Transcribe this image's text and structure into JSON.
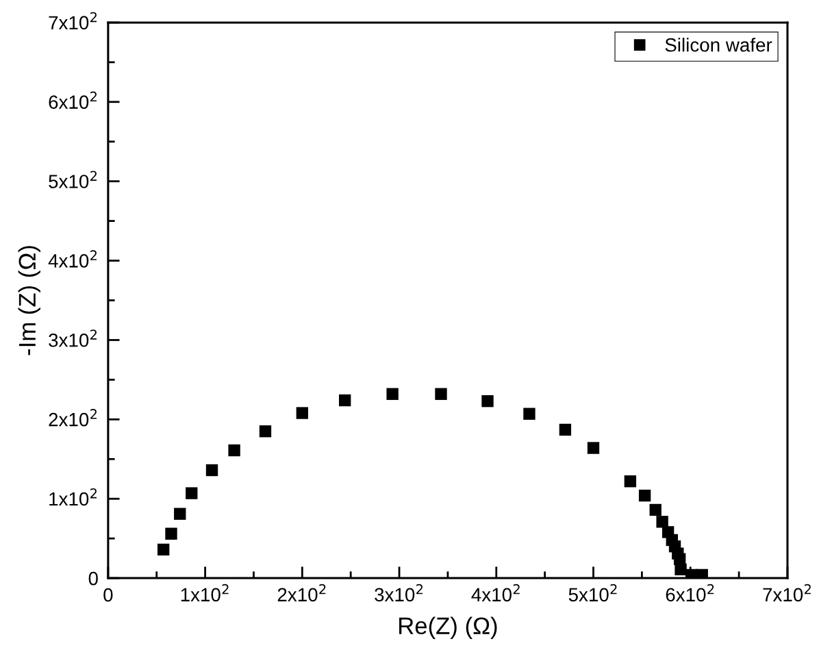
{
  "chart_data": {
    "type": "scatter",
    "xlabel": "Re(Z) (Ω)",
    "ylabel": "-Im (Z) (Ω)",
    "x": [
      57,
      65,
      74,
      86,
      107,
      130,
      162,
      200,
      244,
      293,
      343,
      391,
      434,
      471,
      500,
      538,
      553,
      564,
      571,
      577,
      581,
      584,
      587,
      589,
      590,
      601,
      612
    ],
    "series": [
      {
        "name": "Silicon wafer",
        "color": "#000000",
        "values": [
          36,
          56,
          81,
          107,
          136,
          161,
          185,
          208,
          224,
          232,
          232,
          223,
          207,
          187,
          164,
          122,
          104,
          86,
          71,
          58,
          48,
          40,
          31,
          24,
          11,
          4,
          4
        ]
      }
    ],
    "marker": "square",
    "legend": "top right",
    "grid": false,
    "xlim": [
      0,
      700
    ],
    "ylim": [
      0,
      700
    ],
    "xticks": [
      0,
      {
        "value": 50,
        "label": null
      },
      {
        "value": 100,
        "label": "1x10$^{2}$"
      },
      {
        "value": 150,
        "label": null
      },
      {
        "value": 200,
        "label": "2x10$^{2}$"
      },
      {
        "value": 250,
        "label": null
      },
      {
        "value": 300,
        "label": "3x10$^{2}$"
      },
      {
        "value": 350,
        "label": null
      },
      {
        "value": 400,
        "label": "4x10$^{2}$"
      },
      {
        "value": 450,
        "label": null
      },
      {
        "value": 500,
        "label": "5x10$^{2}$"
      },
      {
        "value": 550,
        "label": null
      },
      {
        "value": 600,
        "label": "6x10$^{2}$"
      },
      {
        "value": 650,
        "label": null
      },
      {
        "value": 700,
        "label": "7x10$^{2}$"
      }
    ],
    "yticks": [
      0,
      {
        "value": 50,
        "label": null
      },
      {
        "value": 100,
        "label": "1x10$^{2}$"
      },
      {
        "value": 150,
        "label": null
      },
      {
        "value": 200,
        "label": "2x10$^{2}$"
      },
      {
        "value": 250,
        "label": null
      },
      {
        "value": 300,
        "label": "3x10$^{2}$"
      },
      {
        "value": 350,
        "label": null
      },
      {
        "value": 400,
        "label": "4x10$^{2}$"
      },
      {
        "value": 450,
        "label": null
      },
      {
        "value": 500,
        "label": "5x10$^{2}$"
      },
      {
        "value": 550,
        "label": null
      },
      {
        "value": 600,
        "label": "6x10$^{2}$"
      },
      {
        "value": 650,
        "label": null
      },
      {
        "value": 700,
        "label": "7x10$^{2}$"
      }
    ]
  }
}
